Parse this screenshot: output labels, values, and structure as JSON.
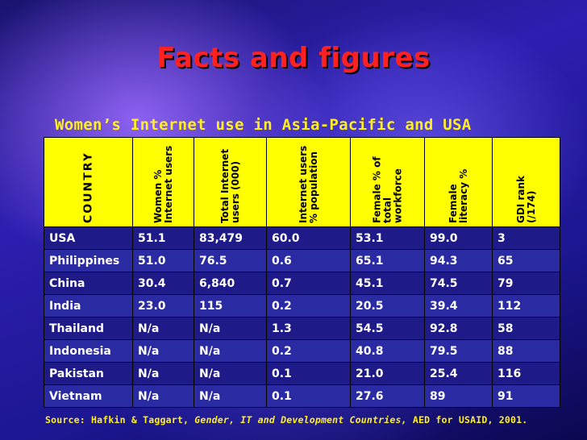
{
  "slide": {
    "title": "Facts and figures",
    "subtitle": "Women’s Internet use in Asia-Pacific and USA"
  },
  "table": {
    "headers": [
      "COUNTRY",
      "Women % Internet users",
      "Total Internet users (000)",
      "Internet users % population",
      "Female % of total workforce",
      "Female literacy %",
      "GDI rank (/174)"
    ],
    "rows": [
      [
        "USA",
        "51.1",
        "83,479",
        "60.0",
        "53.1",
        "99.0",
        "3"
      ],
      [
        "Philippines",
        "51.0",
        "76.5",
        "0.6",
        "65.1",
        "94.3",
        "65"
      ],
      [
        "China",
        "30.4",
        "6,840",
        "0.7",
        "45.1",
        "74.5",
        "79"
      ],
      [
        "India",
        "23.0",
        "115",
        "0.2",
        "20.5",
        "39.4",
        "112"
      ],
      [
        "Thailand",
        "N/a",
        "N/a",
        "1.3",
        "54.5",
        "92.8",
        "58"
      ],
      [
        "Indonesia",
        "N/a",
        "N/a",
        "0.2",
        "40.8",
        "79.5",
        "88"
      ],
      [
        "Pakistan",
        "N/a",
        "N/a",
        "0.1",
        "21.0",
        "25.4",
        "116"
      ],
      [
        "Vietnam",
        "N/a",
        "N/a",
        "0.1",
        "27.6",
        "89",
        "91"
      ]
    ]
  },
  "source": {
    "prefix": "Source: Hafkin & Taggart, ",
    "work": "Gender, IT and Development Countries,",
    "suffix": " AED for USAID, 2001."
  },
  "colors": {
    "title": "#ff2020",
    "subtitle": "#ffee22",
    "header_bg": "#ffff00",
    "row_bg": "#1e1a88"
  }
}
